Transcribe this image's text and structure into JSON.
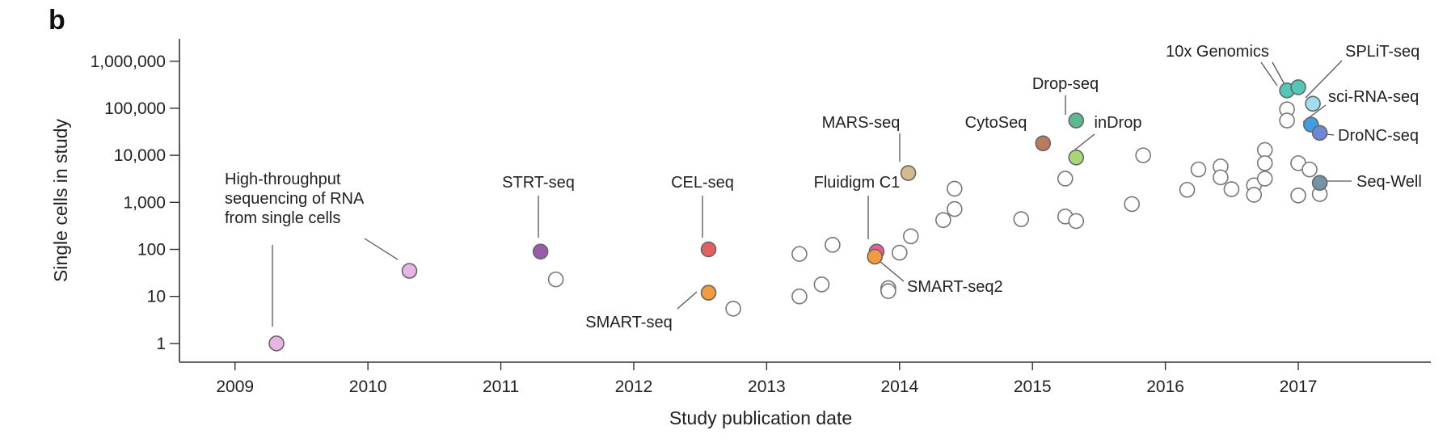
{
  "panel_label": "b",
  "chart_data": {
    "type": "scatter",
    "xlabel": "Study publication date",
    "ylabel": "Single cells in study",
    "y_scale": "log",
    "xlim": [
      "2008-08-01",
      "2017-12-31"
    ],
    "ylim": [
      0.4,
      3000000
    ],
    "x_ticks": [
      "2009",
      "2010",
      "2011",
      "2012",
      "2013",
      "2014",
      "2015",
      "2016",
      "2017"
    ],
    "y_ticks": [
      {
        "value": 1,
        "label": "1"
      },
      {
        "value": 10,
        "label": "10"
      },
      {
        "value": 100,
        "label": "100"
      },
      {
        "value": 1000,
        "label": "1,000"
      },
      {
        "value": 10000,
        "label": "10,000"
      },
      {
        "value": 100000,
        "label": "100,000"
      },
      {
        "value": 1000000,
        "label": "1,000,000"
      }
    ],
    "grid": false,
    "highlighted": [
      {
        "label": "High-throughput sequencing of RNA from single cells",
        "lines": [
          "High-throughput",
          "sequencing of RNA",
          "from single cells"
        ],
        "points": [
          {
            "x": "2009-04-25",
            "y": 1
          },
          {
            "x": "2010-04-25",
            "y": 35
          }
        ],
        "color": "#e7b4e4"
      },
      {
        "label": "STRT-seq",
        "points": [
          {
            "x": "2011-04-20",
            "y": 90
          }
        ],
        "color": "#9b5ba8"
      },
      {
        "label": "CEL-seq",
        "points": [
          {
            "x": "2012-07-25",
            "y": 100
          }
        ],
        "color": "#e45f5f"
      },
      {
        "label": "SMART-seq",
        "points": [
          {
            "x": "2012-07-25",
            "y": 12
          }
        ],
        "color": "#f29a3e"
      },
      {
        "label": "Fluidigm C1",
        "points": [
          {
            "x": "2013-10-30",
            "y": 90
          }
        ],
        "color": "#e95c9e"
      },
      {
        "label": "SMART-seq2",
        "points": [
          {
            "x": "2013-10-25",
            "y": 70
          }
        ],
        "color": "#f29a3e"
      },
      {
        "label": "MARS-seq",
        "points": [
          {
            "x": "2014-01-25",
            "y": 4200
          }
        ],
        "color": "#d6b98e"
      },
      {
        "label": "CytoSeq",
        "points": [
          {
            "x": "2015-01-30",
            "y": 18000
          }
        ],
        "color": "#b97c5e"
      },
      {
        "label": "Drop-seq",
        "points": [
          {
            "x": "2015-05-01",
            "y": 55000
          }
        ],
        "color": "#5cb88d"
      },
      {
        "label": "inDrop",
        "points": [
          {
            "x": "2015-05-01",
            "y": 9000
          }
        ],
        "color": "#a8d875"
      },
      {
        "label": "10x Genomics",
        "points": [
          {
            "x": "2016-12-01",
            "y": 240000
          },
          {
            "x": "2017-01-01",
            "y": 280000
          }
        ],
        "color": "#55c7b8"
      },
      {
        "label": "SPLiT-seq",
        "points": [
          {
            "x": "2017-02-10",
            "y": 125000
          }
        ],
        "color": "#9fdff2"
      },
      {
        "label": "sci-RNA-seq",
        "points": [
          {
            "x": "2017-02-05",
            "y": 45000
          }
        ],
        "color": "#3f9fe0"
      },
      {
        "label": "DroNC-seq",
        "points": [
          {
            "x": "2017-03-01",
            "y": 30000
          }
        ],
        "color": "#6e88d8"
      },
      {
        "label": "Seq-Well",
        "points": [
          {
            "x": "2017-03-01",
            "y": 2600
          }
        ],
        "color": "#7593a5"
      }
    ],
    "other_studies": {
      "color": "#ffffff",
      "points": [
        {
          "x": "2011-06-01",
          "y": 23
        },
        {
          "x": "2012-10-01",
          "y": 5.5
        },
        {
          "x": "2013-04-01",
          "y": 80
        },
        {
          "x": "2013-04-01",
          "y": 10
        },
        {
          "x": "2013-06-01",
          "y": 18
        },
        {
          "x": "2013-07-01",
          "y": 125
        },
        {
          "x": "2013-12-01",
          "y": 15
        },
        {
          "x": "2013-12-01",
          "y": 13
        },
        {
          "x": "2014-01-01",
          "y": 85
        },
        {
          "x": "2014-02-01",
          "y": 190
        },
        {
          "x": "2014-05-01",
          "y": 420
        },
        {
          "x": "2014-06-01",
          "y": 1950
        },
        {
          "x": "2014-06-01",
          "y": 720
        },
        {
          "x": "2014-12-01",
          "y": 440
        },
        {
          "x": "2015-04-01",
          "y": 3200
        },
        {
          "x": "2015-04-01",
          "y": 500
        },
        {
          "x": "2015-05-01",
          "y": 400
        },
        {
          "x": "2015-10-01",
          "y": 920
        },
        {
          "x": "2015-11-01",
          "y": 10000
        },
        {
          "x": "2016-03-01",
          "y": 1850
        },
        {
          "x": "2016-04-01",
          "y": 5000
        },
        {
          "x": "2016-06-01",
          "y": 5800
        },
        {
          "x": "2016-06-01",
          "y": 3400
        },
        {
          "x": "2016-07-01",
          "y": 1900
        },
        {
          "x": "2016-09-01",
          "y": 2300
        },
        {
          "x": "2016-09-01",
          "y": 1450
        },
        {
          "x": "2016-10-01",
          "y": 13000
        },
        {
          "x": "2016-10-01",
          "y": 6800
        },
        {
          "x": "2016-10-01",
          "y": 3200
        },
        {
          "x": "2016-12-01",
          "y": 95000
        },
        {
          "x": "2016-12-01",
          "y": 55000
        },
        {
          "x": "2017-01-01",
          "y": 6800
        },
        {
          "x": "2017-01-01",
          "y": 1400
        },
        {
          "x": "2017-02-01",
          "y": 5000
        },
        {
          "x": "2017-03-01",
          "y": 1500
        }
      ]
    }
  }
}
